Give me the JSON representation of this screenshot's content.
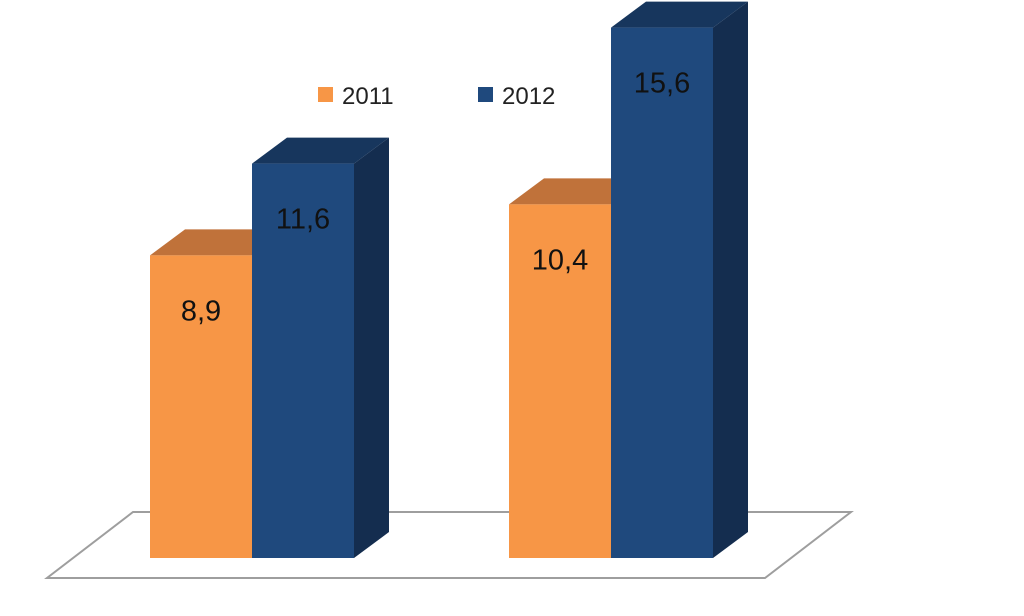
{
  "chart_data": {
    "type": "bar",
    "categories": [
      "",
      ""
    ],
    "series": [
      {
        "name": "2011",
        "values": [
          8.9,
          10.4
        ],
        "labels": [
          "8,9",
          "10,4"
        ],
        "color": "#f79646",
        "top_color": "#c0723a",
        "side_color": "#c0723a"
      },
      {
        "name": "2012",
        "values": [
          11.6,
          15.6
        ],
        "labels": [
          "11,6",
          "15,6"
        ],
        "color": "#1f497d",
        "top_color": "#17365d",
        "side_color": "#142d4f"
      }
    ],
    "title": "",
    "xlabel": "",
    "ylabel": "",
    "ylim": [
      0,
      17
    ],
    "grid": false,
    "legend": "top-center",
    "style": "3d-column",
    "floor_color": "#9e9e9e"
  }
}
